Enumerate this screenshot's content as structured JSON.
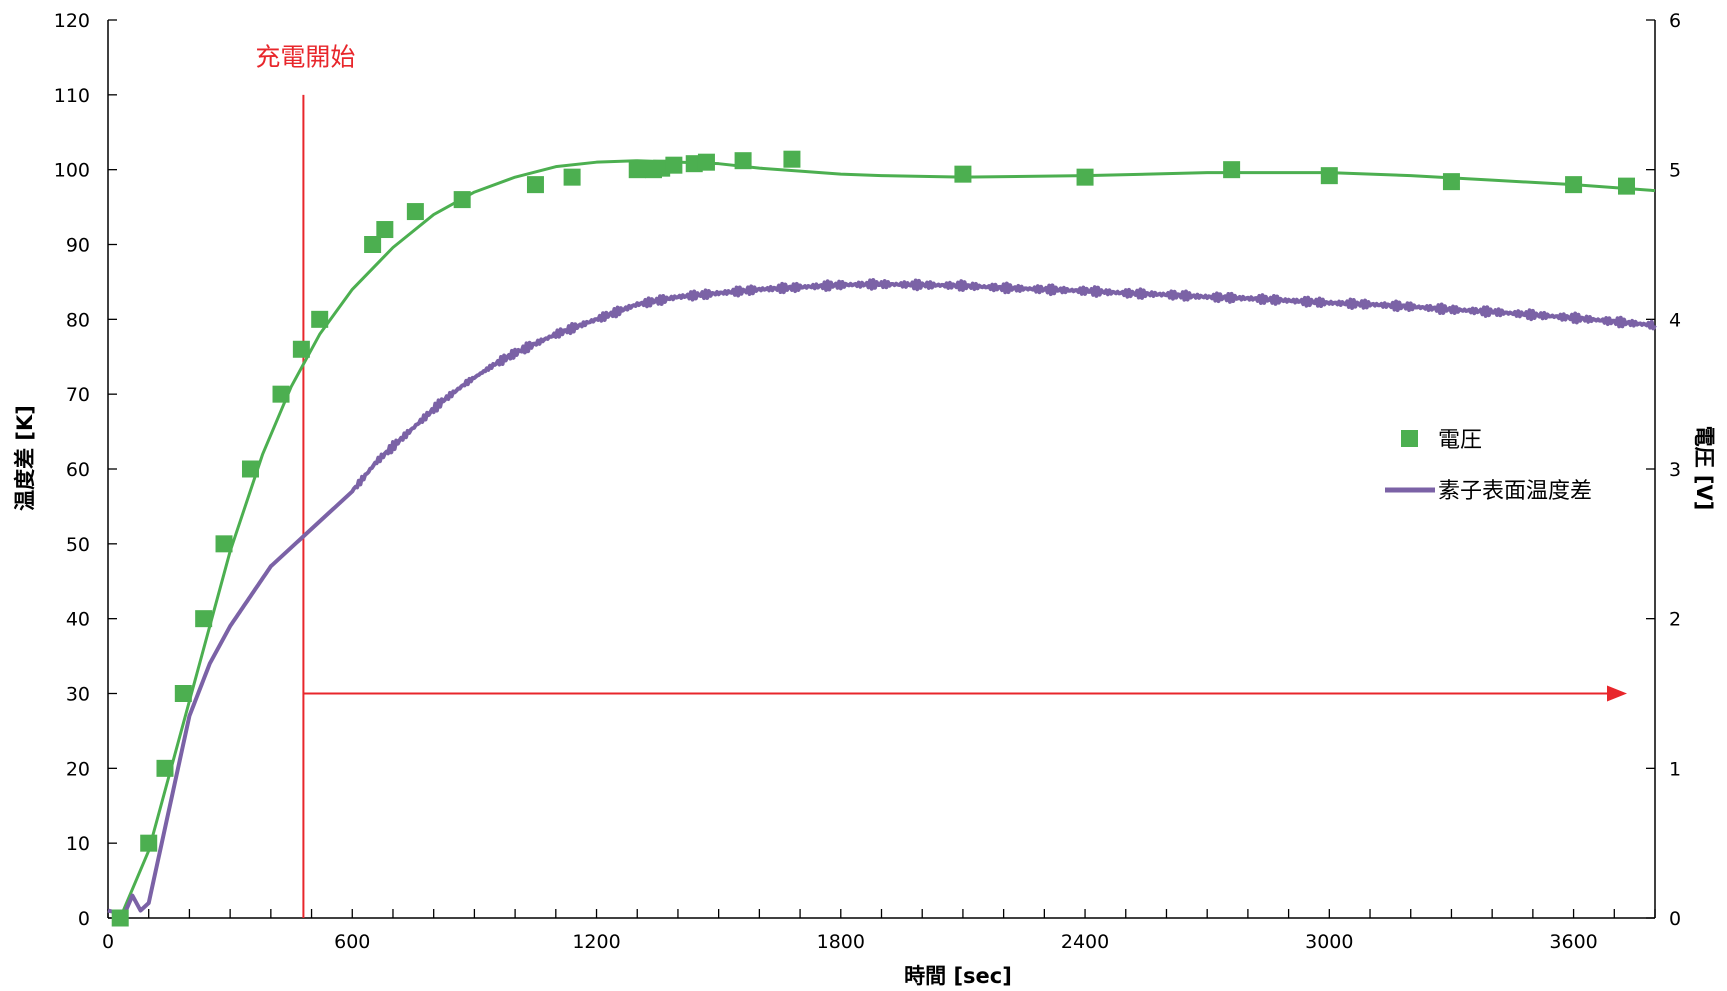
{
  "chart_data": {
    "type": "line",
    "xlabel": "時間 [sec]",
    "ylabel": "温度差 [K]",
    "y2label": "電圧 [V]",
    "xlim": [
      0,
      3800
    ],
    "ylim": [
      0,
      120
    ],
    "y2lim": [
      0,
      6
    ],
    "xticks": [
      0,
      600,
      1200,
      1800,
      2400,
      3000,
      3600
    ],
    "yticks": [
      0,
      10,
      20,
      30,
      40,
      50,
      60,
      70,
      80,
      90,
      100,
      110,
      120
    ],
    "y2ticks": [
      0,
      1,
      2,
      3,
      4,
      5,
      6
    ],
    "grid": false,
    "legend_position": "right",
    "annotation": {
      "text": "充電開始",
      "x": 480,
      "arrow_from_x": 480,
      "arrow_to_x": 3800,
      "arrow_y": 30
    },
    "series": [
      {
        "name": "電圧",
        "axis": "right",
        "kind": "scatter",
        "color": "#4caf50",
        "points": [
          [
            30,
            0.0
          ],
          [
            100,
            0.5
          ],
          [
            140,
            1.0
          ],
          [
            185,
            1.5
          ],
          [
            235,
            2.0
          ],
          [
            285,
            2.5
          ],
          [
            350,
            3.0
          ],
          [
            425,
            3.5
          ],
          [
            475,
            3.8
          ],
          [
            520,
            4.0
          ],
          [
            650,
            4.5
          ],
          [
            680,
            4.6
          ],
          [
            755,
            4.72
          ],
          [
            870,
            4.8
          ],
          [
            1050,
            4.9
          ],
          [
            1140,
            4.95
          ],
          [
            1300,
            5.0
          ],
          [
            1340,
            5.0
          ],
          [
            1360,
            5.01
          ],
          [
            1390,
            5.03
          ],
          [
            1440,
            5.04
          ],
          [
            1470,
            5.05
          ],
          [
            1560,
            5.06
          ],
          [
            1680,
            5.07
          ],
          [
            2100,
            4.97
          ],
          [
            2400,
            4.95
          ],
          [
            2760,
            5.0
          ],
          [
            3000,
            4.96
          ],
          [
            3300,
            4.92
          ],
          [
            3600,
            4.9
          ],
          [
            3730,
            4.89
          ]
        ],
        "fit_line": [
          [
            30,
            0.0
          ],
          [
            100,
            0.45
          ],
          [
            160,
            1.05
          ],
          [
            230,
            1.75
          ],
          [
            300,
            2.45
          ],
          [
            380,
            3.1
          ],
          [
            450,
            3.55
          ],
          [
            520,
            3.9
          ],
          [
            600,
            4.2
          ],
          [
            700,
            4.48
          ],
          [
            800,
            4.7
          ],
          [
            900,
            4.85
          ],
          [
            1000,
            4.95
          ],
          [
            1100,
            5.02
          ],
          [
            1200,
            5.05
          ],
          [
            1300,
            5.06
          ],
          [
            1400,
            5.05
          ],
          [
            1500,
            5.04
          ],
          [
            1600,
            5.01
          ],
          [
            1700,
            4.99
          ],
          [
            1800,
            4.97
          ],
          [
            1900,
            4.96
          ],
          [
            2100,
            4.95
          ],
          [
            2400,
            4.96
          ],
          [
            2700,
            4.98
          ],
          [
            3000,
            4.98
          ],
          [
            3200,
            4.96
          ],
          [
            3400,
            4.93
          ],
          [
            3600,
            4.9
          ],
          [
            3800,
            4.86
          ]
        ]
      },
      {
        "name": "素子表面温度差",
        "axis": "left",
        "kind": "line",
        "color": "#7b62a6",
        "points": [
          [
            0,
            1
          ],
          [
            40,
            0.5
          ],
          [
            60,
            3
          ],
          [
            80,
            1
          ],
          [
            100,
            2
          ],
          [
            120,
            7
          ],
          [
            140,
            12
          ],
          [
            160,
            17
          ],
          [
            200,
            27
          ],
          [
            250,
            34
          ],
          [
            300,
            39
          ],
          [
            350,
            43
          ],
          [
            400,
            47
          ],
          [
            440,
            49
          ],
          [
            480,
            51
          ],
          [
            520,
            53
          ],
          [
            560,
            55
          ],
          [
            600,
            57
          ],
          [
            660,
            61
          ],
          [
            700,
            63
          ],
          [
            760,
            66
          ],
          [
            820,
            69
          ],
          [
            880,
            71.5
          ],
          [
            950,
            74
          ],
          [
            1000,
            75.5
          ],
          [
            1100,
            78
          ],
          [
            1200,
            80
          ],
          [
            1300,
            82
          ],
          [
            1400,
            83
          ],
          [
            1500,
            83.5
          ],
          [
            1600,
            84
          ],
          [
            1700,
            84.3
          ],
          [
            1800,
            84.6
          ],
          [
            1900,
            84.7
          ],
          [
            2000,
            84.6
          ],
          [
            2100,
            84.5
          ],
          [
            2200,
            84.2
          ],
          [
            2300,
            84
          ],
          [
            2400,
            83.8
          ],
          [
            2500,
            83.5
          ],
          [
            2600,
            83.3
          ],
          [
            2700,
            83
          ],
          [
            2800,
            82.8
          ],
          [
            2900,
            82.5
          ],
          [
            3000,
            82.2
          ],
          [
            3100,
            82
          ],
          [
            3200,
            81.7
          ],
          [
            3300,
            81.3
          ],
          [
            3400,
            81
          ],
          [
            3500,
            80.6
          ],
          [
            3600,
            80.2
          ],
          [
            3700,
            79.7
          ],
          [
            3800,
            79.2
          ]
        ]
      }
    ]
  }
}
